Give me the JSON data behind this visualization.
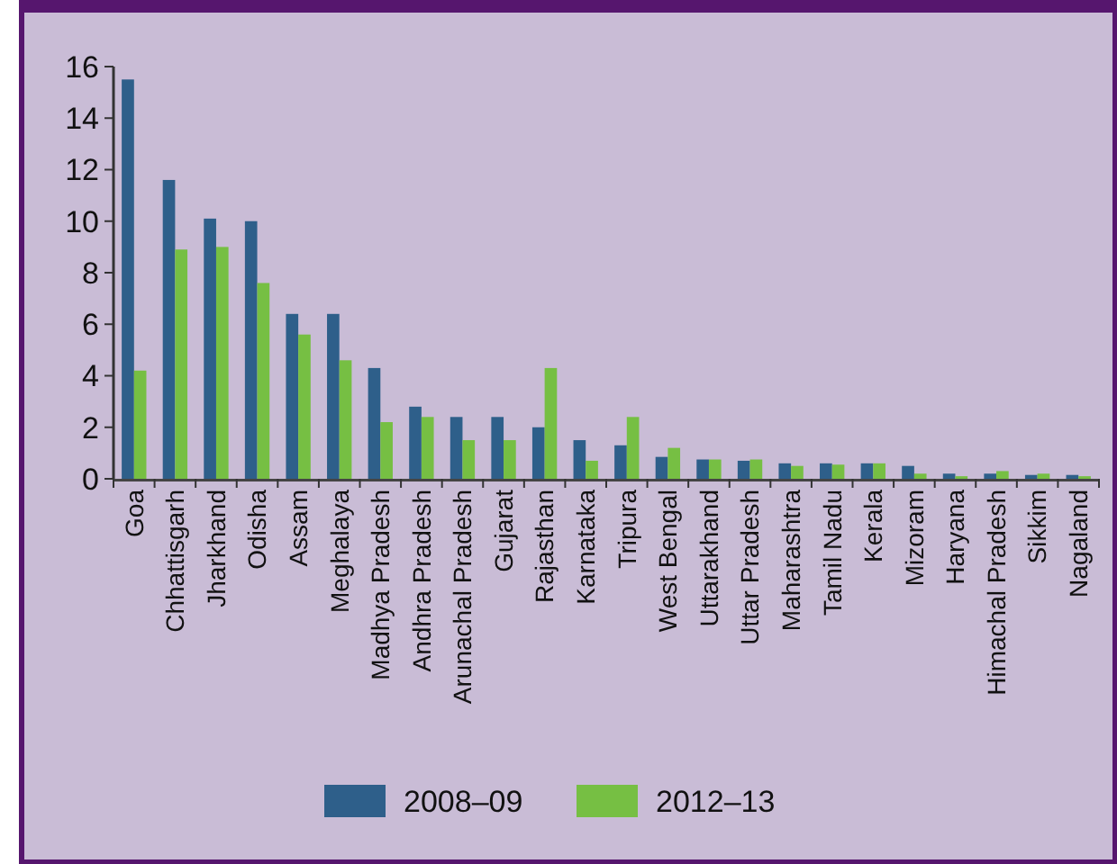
{
  "chart_data": {
    "type": "bar",
    "categories": [
      "Goa",
      "Chhattisgarh",
      "Jharkhand",
      "Odisha",
      "Assam",
      "Meghalaya",
      "Madhya Pradesh",
      "Andhra Pradesh",
      "Arunachal Pradesh",
      "Gujarat",
      "Rajasthan",
      "Karnataka",
      "Tripura",
      "West Bengal",
      "Uttarakhand",
      "Uttar Pradesh",
      "Maharashtra",
      "Tamil Nadu",
      "Kerala",
      "Mizoram",
      "Haryana",
      "Himachal Pradesh",
      "Sikkim",
      "Nagaland"
    ],
    "series": [
      {
        "name": "2008–09",
        "color": "#2e5f8a",
        "values": [
          15.5,
          11.6,
          10.1,
          10.0,
          6.4,
          6.4,
          4.3,
          2.8,
          2.4,
          2.4,
          2.0,
          1.5,
          1.3,
          0.85,
          0.75,
          0.7,
          0.6,
          0.6,
          0.6,
          0.5,
          0.2,
          0.2,
          0.15,
          0.15
        ]
      },
      {
        "name": "2012–13",
        "color": "#76bf43",
        "values": [
          4.2,
          8.9,
          9.0,
          7.6,
          5.6,
          4.6,
          2.2,
          2.4,
          1.5,
          1.5,
          4.3,
          0.7,
          2.4,
          1.2,
          0.75,
          0.75,
          0.5,
          0.55,
          0.6,
          0.2,
          0.1,
          0.3,
          0.2,
          0.1
        ]
      }
    ],
    "ylim": [
      0,
      16
    ],
    "yticks": [
      0,
      2,
      4,
      6,
      8,
      10,
      12,
      14,
      16
    ],
    "grid": false,
    "legend": "bottom"
  }
}
